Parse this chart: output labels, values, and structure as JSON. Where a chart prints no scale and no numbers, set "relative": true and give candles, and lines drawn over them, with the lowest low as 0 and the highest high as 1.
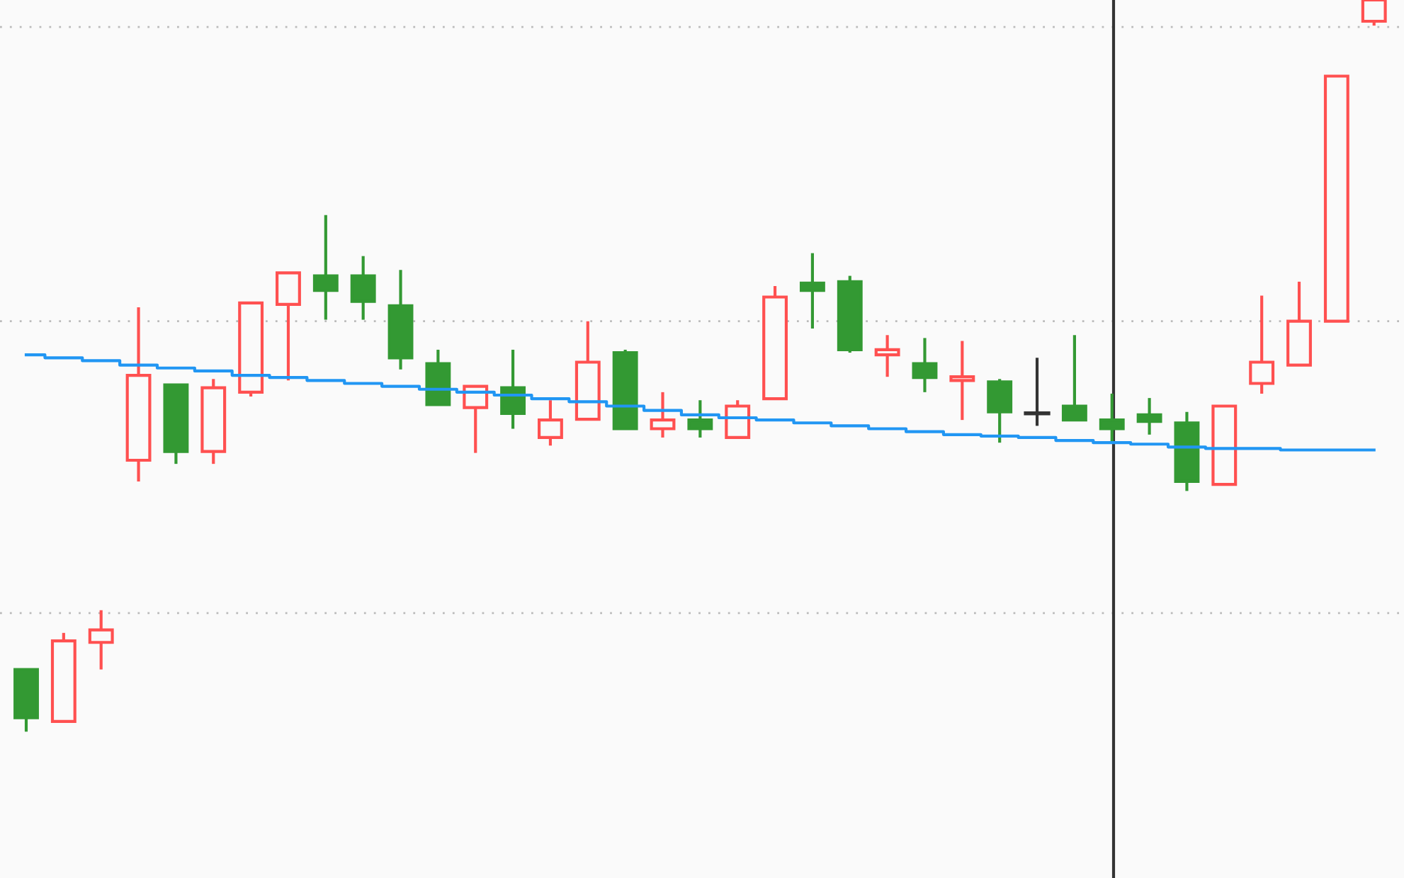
{
  "chart_data": {
    "type": "candlestick",
    "relative": true,
    "categories": [
      null,
      null,
      null,
      null,
      null,
      null,
      null,
      null,
      null,
      null,
      null,
      null,
      null,
      null,
      null,
      null,
      null,
      null,
      null,
      null,
      null,
      null,
      null,
      null,
      null,
      null,
      null,
      null,
      null,
      null,
      null,
      null,
      null,
      null,
      null,
      null,
      null
    ],
    "ohlc": [
      [
        0.085,
        0.085,
        0,
        0.019
      ],
      [
        0.014,
        0.135,
        0.014,
        0.124
      ],
      [
        0.122,
        0.166,
        0.085,
        0.139
      ],
      [
        0.371,
        0.58,
        0.342,
        0.487
      ],
      [
        0.474,
        0.474,
        0.366,
        0.383
      ],
      [
        0.383,
        0.482,
        0.366,
        0.47
      ],
      [
        0.464,
        0.586,
        0.458,
        0.586
      ],
      [
        0.584,
        0.627,
        0.48,
        0.627
      ],
      [
        0.623,
        0.706,
        0.563,
        0.603
      ],
      [
        0.623,
        0.65,
        0.563,
        0.588
      ],
      [
        0.582,
        0.631,
        0.495,
        0.511
      ],
      [
        0.503,
        0.522,
        0.447,
        0.447
      ],
      [
        0.443,
        0.472,
        0.381,
        0.472
      ],
      [
        0.47,
        0.522,
        0.414,
        0.435
      ],
      [
        0.402,
        0.453,
        0.391,
        0.426
      ],
      [
        0.427,
        0.561,
        0.427,
        0.505
      ],
      [
        0.518,
        0.522,
        0.414,
        0.414
      ],
      [
        0.414,
        0.464,
        0.402,
        0.426
      ],
      [
        0.426,
        0.453,
        0.402,
        0.414
      ],
      [
        0.402,
        0.453,
        0.402,
        0.445
      ],
      [
        0.455,
        0.609,
        0.455,
        0.594
      ],
      [
        0.613,
        0.654,
        0.551,
        0.603
      ],
      [
        0.615,
        0.623,
        0.518,
        0.522
      ],
      [
        0.515,
        0.542,
        0.485,
        0.522
      ],
      [
        0.503,
        0.538,
        0.464,
        0.484
      ],
      [
        0.48,
        0.534,
        0.426,
        0.485
      ],
      [
        0.478,
        0.482,
        0.395,
        0.437
      ],
      [
        0.435,
        0.511,
        0.418,
        0.435
      ],
      [
        0.445,
        0.542,
        0.426,
        0.426
      ],
      [
        0.426,
        0.462,
        0.395,
        0.414
      ],
      [
        0.433,
        0.456,
        0.406,
        0.424
      ],
      [
        0.422,
        0.437,
        0.329,
        0.342
      ],
      [
        0.338,
        0.445,
        0.338,
        0.445
      ],
      [
        0.476,
        0.596,
        0.462,
        0.505
      ],
      [
        0.501,
        0.615,
        0.501,
        0.561
      ],
      [
        0.561,
        0.896,
        0.561,
        0.896
      ],
      [
        0.971,
        1,
        0.965,
        1
      ]
    ],
    "colors": [
      "#339933",
      "#ff5050",
      "#ff5050",
      "#ff5050",
      "#339933",
      "#ff5050",
      "#ff5050",
      "#ff5050",
      "#339933",
      "#339933",
      "#339933",
      "#339933",
      "#ff5050",
      "#339933",
      "#ff5050",
      "#ff5050",
      "#339933",
      "#ff5050",
      "#339933",
      "#ff5050",
      "#ff5050",
      "#339933",
      "#339933",
      "#ff5050",
      "#339933",
      "#ff5050",
      "#339933",
      "#333333",
      "#339933",
      "#339933",
      "#339933",
      "#339933",
      "#ff5050",
      "#ff5050",
      "#ff5050",
      "#ff5050",
      "#ff5050"
    ],
    "series": [
      {
        "type": "line",
        "color": "#2196f3",
        "values": [
          0.515,
          0.511,
          0.507,
          0.501,
          0.497,
          0.493,
          0.487,
          0.484,
          0.48,
          0.476,
          0.472,
          0.468,
          0.464,
          0.46,
          0.455,
          0.451,
          0.445,
          0.439,
          0.433,
          0.429,
          0.426,
          0.422,
          0.418,
          0.414,
          0.41,
          0.406,
          0.404,
          0.402,
          0.398,
          0.395,
          0.393,
          0.389,
          0.387,
          0.387,
          0.385,
          0.385,
          0.385
        ]
      }
    ],
    "ref_lines": [
      {
        "axis": "y",
        "value": 0.963,
        "color": "#bbbbbb",
        "line_style": "dotted"
      },
      {
        "axis": "y",
        "value": 0.561,
        "color": "#bbbbbb",
        "line_style": "dotted"
      },
      {
        "axis": "y",
        "value": 0.162,
        "color": "#bbbbbb",
        "line_style": "dotted"
      }
    ]
  }
}
